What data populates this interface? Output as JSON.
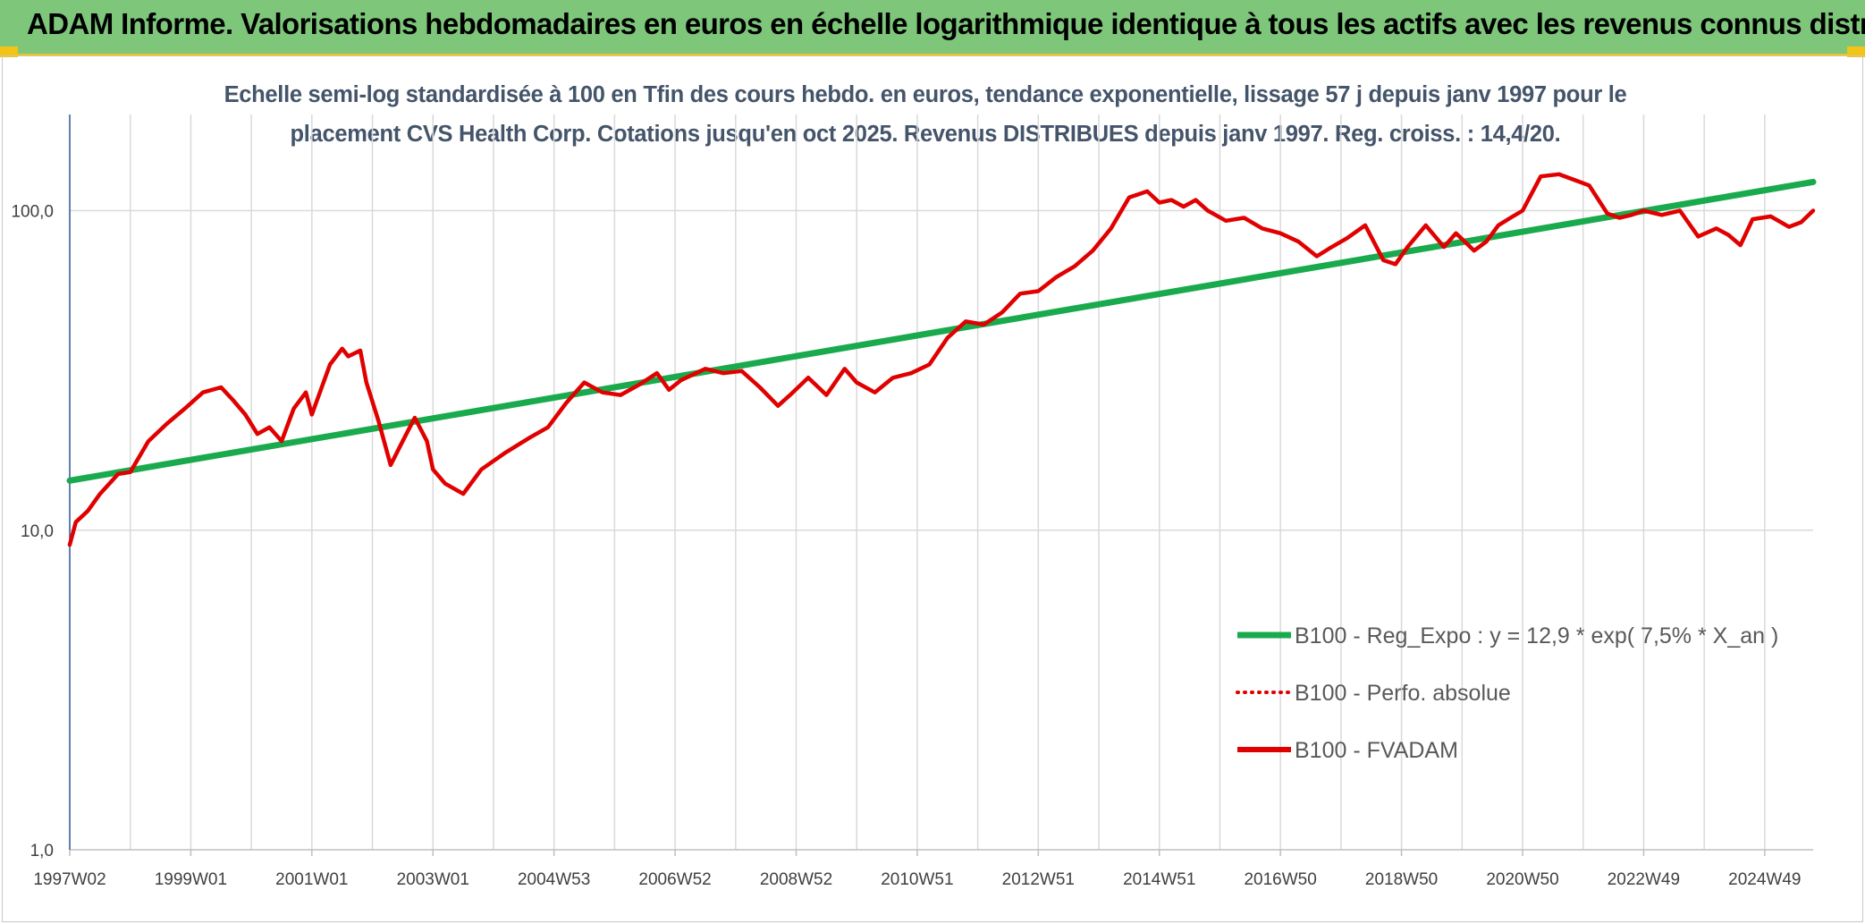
{
  "header": {
    "title": "ADAM Informe. Valorisations hebdomadaires en euros en échelle logarithmique identique à tous les actifs avec les revenus connus distribués"
  },
  "chart_data": {
    "type": "line",
    "title_line1": "Echelle semi-log standardisée à 100 en Tfin des cours hebdo. en euros, tendance exponentielle, lissage 57 j depuis janv 1997 pour le",
    "title_line2": "placement CVS Health Corp. Cotations jusqu'en oct 2025. Revenus DISTRIBUES depuis janv 1997. Reg. croiss. : 14,4/20.",
    "y_scale": "log",
    "ylim": [
      1,
      200
    ],
    "y_ticks": [
      {
        "value": 1,
        "label": "1,0"
      },
      {
        "value": 10,
        "label": "10,0"
      },
      {
        "value": 100,
        "label": "100,0"
      }
    ],
    "xlim": [
      1997.0,
      2025.8
    ],
    "x_ticks": [
      {
        "value": 1997.0,
        "label": "1997W02"
      },
      {
        "value": 1999.0,
        "label": "1999W01"
      },
      {
        "value": 2001.0,
        "label": "2001W01"
      },
      {
        "value": 2003.0,
        "label": "2003W01"
      },
      {
        "value": 2005.0,
        "label": "2004W53"
      },
      {
        "value": 2007.0,
        "label": "2006W52"
      },
      {
        "value": 2009.0,
        "label": "2008W52"
      },
      {
        "value": 2011.0,
        "label": "2010W51"
      },
      {
        "value": 2013.0,
        "label": "2012W51"
      },
      {
        "value": 2015.0,
        "label": "2014W51"
      },
      {
        "value": 2017.0,
        "label": "2016W50"
      },
      {
        "value": 2019.0,
        "label": "2018W50"
      },
      {
        "value": 2021.0,
        "label": "2020W50"
      },
      {
        "value": 2023.0,
        "label": "2022W49"
      },
      {
        "value": 2025.0,
        "label": "2024W49"
      }
    ],
    "grid": true,
    "legend_position": "bottom-right",
    "series": [
      {
        "name": "B100 - Reg_Expo : y = 12,9 * exp( 7,5% *  X_an )",
        "color": "#1aaa4e",
        "style": "solid",
        "x": [
          1997.0,
          2025.8
        ],
        "y": [
          14.3,
          123.0
        ]
      },
      {
        "name": "B100 - Perfo. absolue",
        "color": "#e00000",
        "style": "dotted",
        "x": [],
        "y": []
      },
      {
        "name": "B100 - FVADAM",
        "color": "#e00000",
        "style": "solid",
        "x": [
          1997.0,
          1997.1,
          1997.3,
          1997.5,
          1997.8,
          1998.0,
          1998.3,
          1998.6,
          1998.9,
          1999.2,
          1999.5,
          1999.7,
          1999.9,
          2000.1,
          2000.3,
          2000.5,
          2000.7,
          2000.9,
          2001.0,
          2001.3,
          2001.5,
          2001.6,
          2001.8,
          2001.9,
          2002.1,
          2002.3,
          2002.5,
          2002.7,
          2002.9,
          2003.0,
          2003.2,
          2003.5,
          2003.8,
          2004.2,
          2004.6,
          2004.9,
          2005.2,
          2005.5,
          2005.8,
          2006.1,
          2006.4,
          2006.7,
          2006.9,
          2007.1,
          2007.5,
          2007.8,
          2008.1,
          2008.4,
          2008.7,
          2008.9,
          2009.2,
          2009.5,
          2009.8,
          2010.0,
          2010.3,
          2010.6,
          2010.9,
          2011.2,
          2011.5,
          2011.8,
          2012.1,
          2012.4,
          2012.7,
          2013.0,
          2013.3,
          2013.6,
          2013.9,
          2014.2,
          2014.5,
          2014.8,
          2015.0,
          2015.2,
          2015.4,
          2015.6,
          2015.8,
          2016.1,
          2016.4,
          2016.7,
          2017.0,
          2017.3,
          2017.6,
          2017.8,
          2018.1,
          2018.4,
          2018.7,
          2018.9,
          2019.1,
          2019.4,
          2019.7,
          2019.9,
          2020.2,
          2020.4,
          2020.6,
          2020.8,
          2021.0,
          2021.3,
          2021.6,
          2021.9,
          2022.1,
          2022.4,
          2022.6,
          2022.8,
          2023.0,
          2023.3,
          2023.6,
          2023.9,
          2024.2,
          2024.4,
          2024.6,
          2024.8,
          2025.1,
          2025.4,
          2025.6,
          2025.8
        ],
        "y": [
          9.0,
          10.6,
          11.5,
          13.0,
          15.0,
          15.2,
          19.0,
          21.5,
          24.0,
          27.0,
          28.0,
          25.5,
          23.0,
          20.0,
          21.0,
          19.0,
          24.0,
          27.0,
          23.0,
          33.0,
          37.0,
          35.0,
          36.5,
          29.0,
          22.0,
          16.0,
          19.0,
          22.5,
          19.0,
          15.5,
          14.0,
          13.0,
          15.5,
          17.5,
          19.5,
          21.0,
          25.0,
          29.0,
          27.0,
          26.5,
          28.5,
          31.0,
          27.5,
          29.5,
          32.0,
          31.0,
          31.5,
          28.0,
          24.5,
          26.5,
          30.0,
          26.5,
          32.0,
          29.0,
          27.0,
          30.0,
          31.0,
          33.0,
          40.0,
          45.0,
          44.0,
          48.0,
          55.0,
          56.0,
          62.0,
          67.0,
          75.0,
          88.0,
          110.0,
          115.0,
          106.0,
          108.0,
          103.0,
          108.0,
          100.0,
          93.0,
          95.0,
          88.0,
          85.0,
          80.0,
          72.0,
          76.0,
          82.0,
          90.0,
          70.0,
          68.0,
          77.0,
          90.0,
          77.0,
          85.0,
          75.0,
          80.0,
          90.0,
          95.0,
          100.0,
          128.0,
          130.0,
          124.0,
          120.0,
          98.0,
          95.0,
          97.0,
          100.0,
          97.0,
          100.0,
          83.0,
          88.0,
          84.0,
          78.0,
          94.0,
          96.0,
          89.0,
          92.0,
          100.0
        ]
      }
    ]
  }
}
